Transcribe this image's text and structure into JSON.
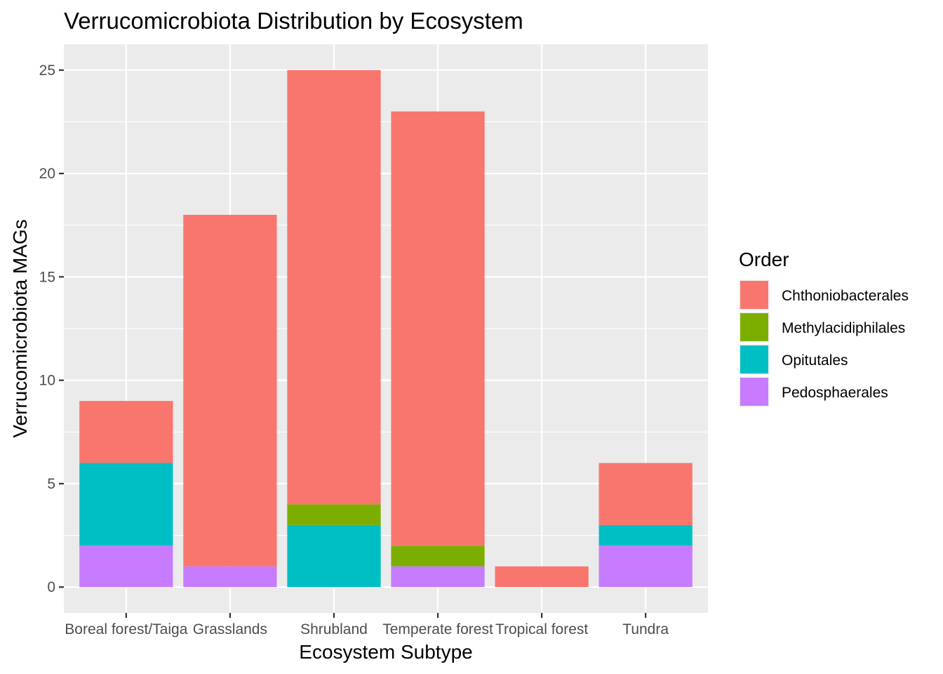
{
  "chart_data": {
    "type": "bar",
    "stacked": true,
    "title": "Verrucomicrobiota Distribution by Ecosystem",
    "xlabel": "Ecosystem Subtype",
    "ylabel": "Verrucomicrobiota MAGs",
    "categories": [
      "Boreal forest/Taiga",
      "Grasslands",
      "Shrubland",
      "Temperate forest",
      "Tropical forest",
      "Tundra"
    ],
    "ylim": [
      -1.25,
      26.25
    ],
    "yticks": [
      0,
      5,
      10,
      15,
      20,
      25
    ],
    "grid": true,
    "legend": {
      "title": "Order",
      "position": "right"
    },
    "series": [
      {
        "name": "Chthoniobacterales",
        "color": "#F8766D",
        "values": [
          3,
          17,
          21,
          21,
          1,
          3
        ]
      },
      {
        "name": "Methylacidiphilales",
        "color": "#7CAE00",
        "values": [
          0,
          0,
          1,
          1,
          0,
          0
        ]
      },
      {
        "name": "Opitutales",
        "color": "#00BFC4",
        "values": [
          4,
          0,
          3,
          0,
          0,
          1
        ]
      },
      {
        "name": "Pedosphaerales",
        "color": "#C77CFF",
        "values": [
          2,
          1,
          0,
          1,
          0,
          2
        ]
      }
    ],
    "panel_background": "#EBEBEB",
    "grid_color": "#FFFFFF"
  }
}
